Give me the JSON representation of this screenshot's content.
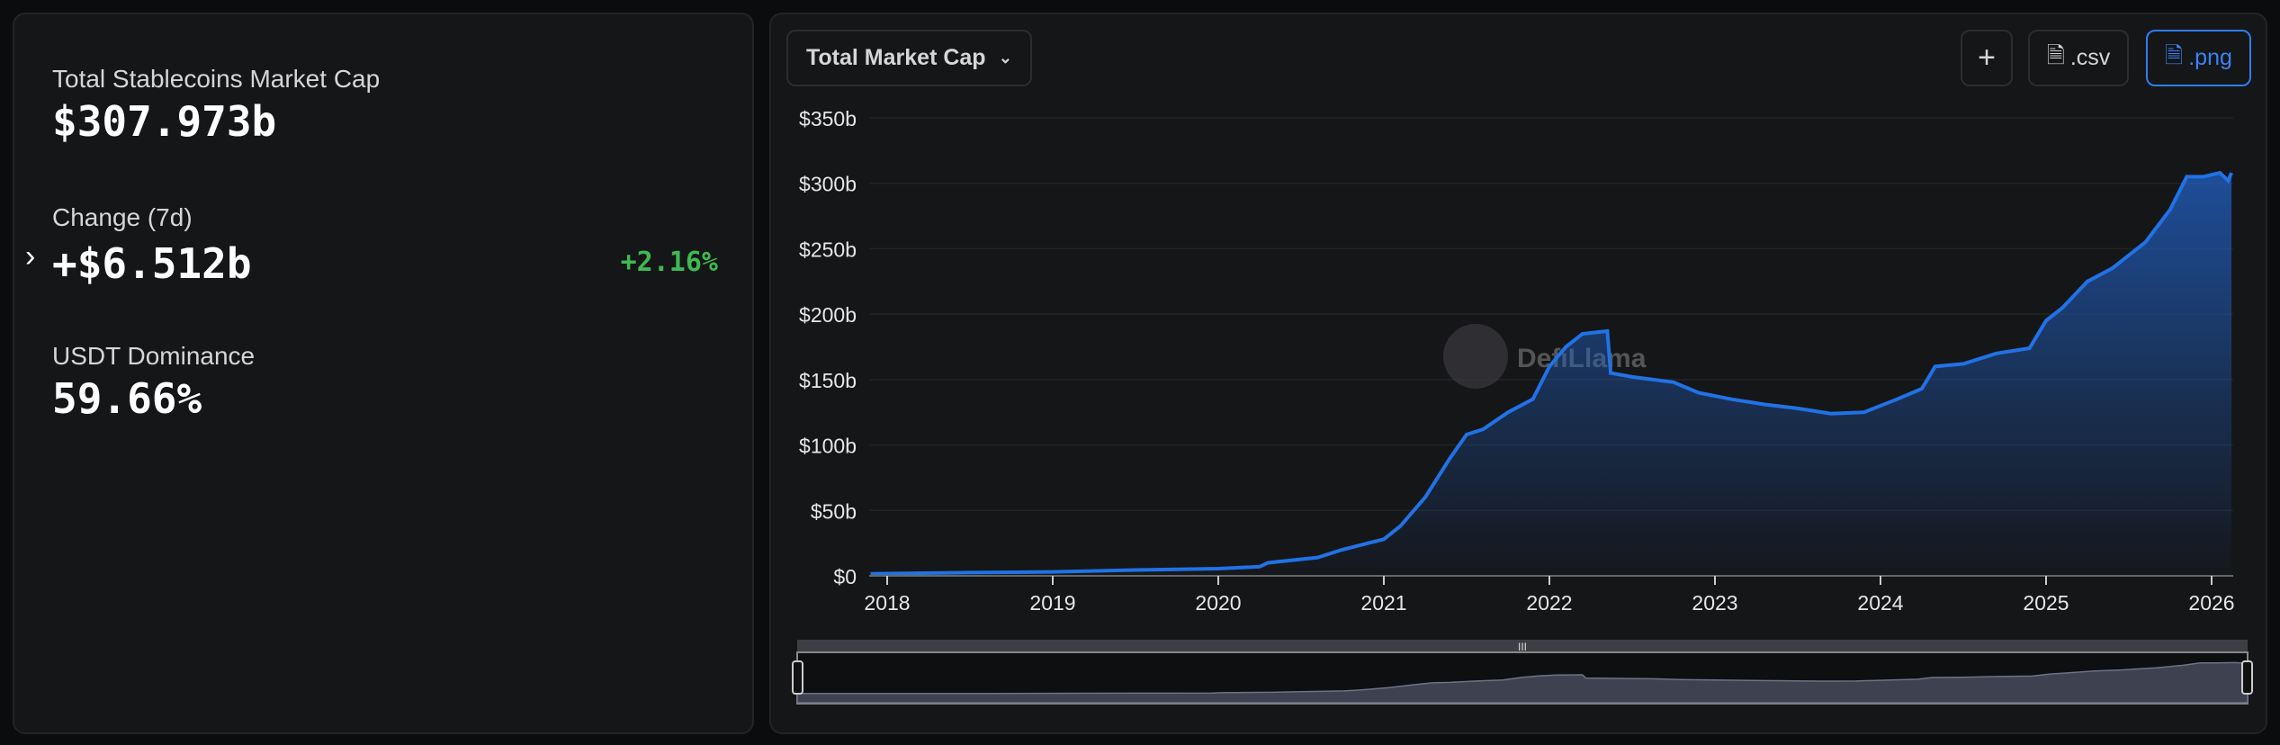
{
  "summary": {
    "total_label": "Total Stablecoins Market Cap",
    "total_value": "$307.973b",
    "change_label": "Change (7d)",
    "change_value": "+$6.512b",
    "change_pct": "+2.16%",
    "dominance_label": "USDT Dominance",
    "dominance_value": "59.66%"
  },
  "toolbar": {
    "dropdown": "Total Market Cap",
    "plus": "+",
    "csv": ".csv",
    "png": ".png"
  },
  "watermark": "DefiLlama",
  "colors": {
    "line": "#2172e5",
    "positive": "#3fb950",
    "accent": "#3b82f6"
  },
  "chart_data": {
    "type": "area",
    "title": "",
    "xlabel": "",
    "ylabel": "",
    "ylim": [
      0,
      350
    ],
    "xlim": [
      2017.9,
      2026.12
    ],
    "yticks": [
      "$0",
      "$50b",
      "$100b",
      "$150b",
      "$200b",
      "$250b",
      "$300b",
      "$350b"
    ],
    "xticks": [
      "2018",
      "2019",
      "2020",
      "2021",
      "2022",
      "2023",
      "2024",
      "2025",
      "2026"
    ],
    "grid": true,
    "series": [
      {
        "x": [
          2017.9,
          2018.5,
          2019,
          2019.5,
          2020,
          2020.25,
          2020.3,
          2020.6,
          2020.75,
          2021,
          2021.1,
          2021.25,
          2021.4,
          2021.5,
          2021.6,
          2021.75,
          2021.9,
          2022,
          2022.1,
          2022.2,
          2022.35,
          2022.37,
          2022.5,
          2022.75,
          2022.9,
          2023.1,
          2023.3,
          2023.5,
          2023.7,
          2023.9,
          2024.1,
          2024.25,
          2024.33,
          2024.5,
          2024.7,
          2024.9,
          2025,
          2025.1,
          2025.25,
          2025.4,
          2025.5,
          2025.6,
          2025.75,
          2025.85,
          2025.95,
          2026.05,
          2026.1,
          2026.12
        ],
        "y": [
          1.5,
          2.5,
          3,
          4.5,
          5.5,
          7,
          10,
          14,
          20,
          28,
          38,
          60,
          90,
          108,
          112,
          125,
          135,
          160,
          175,
          185,
          187,
          155,
          152,
          148,
          140,
          135,
          131,
          128,
          124,
          125,
          135,
          143,
          160,
          162,
          170,
          174,
          195,
          205,
          225,
          235,
          245,
          255,
          280,
          305,
          305,
          308,
          302,
          308
        ]
      }
    ]
  }
}
